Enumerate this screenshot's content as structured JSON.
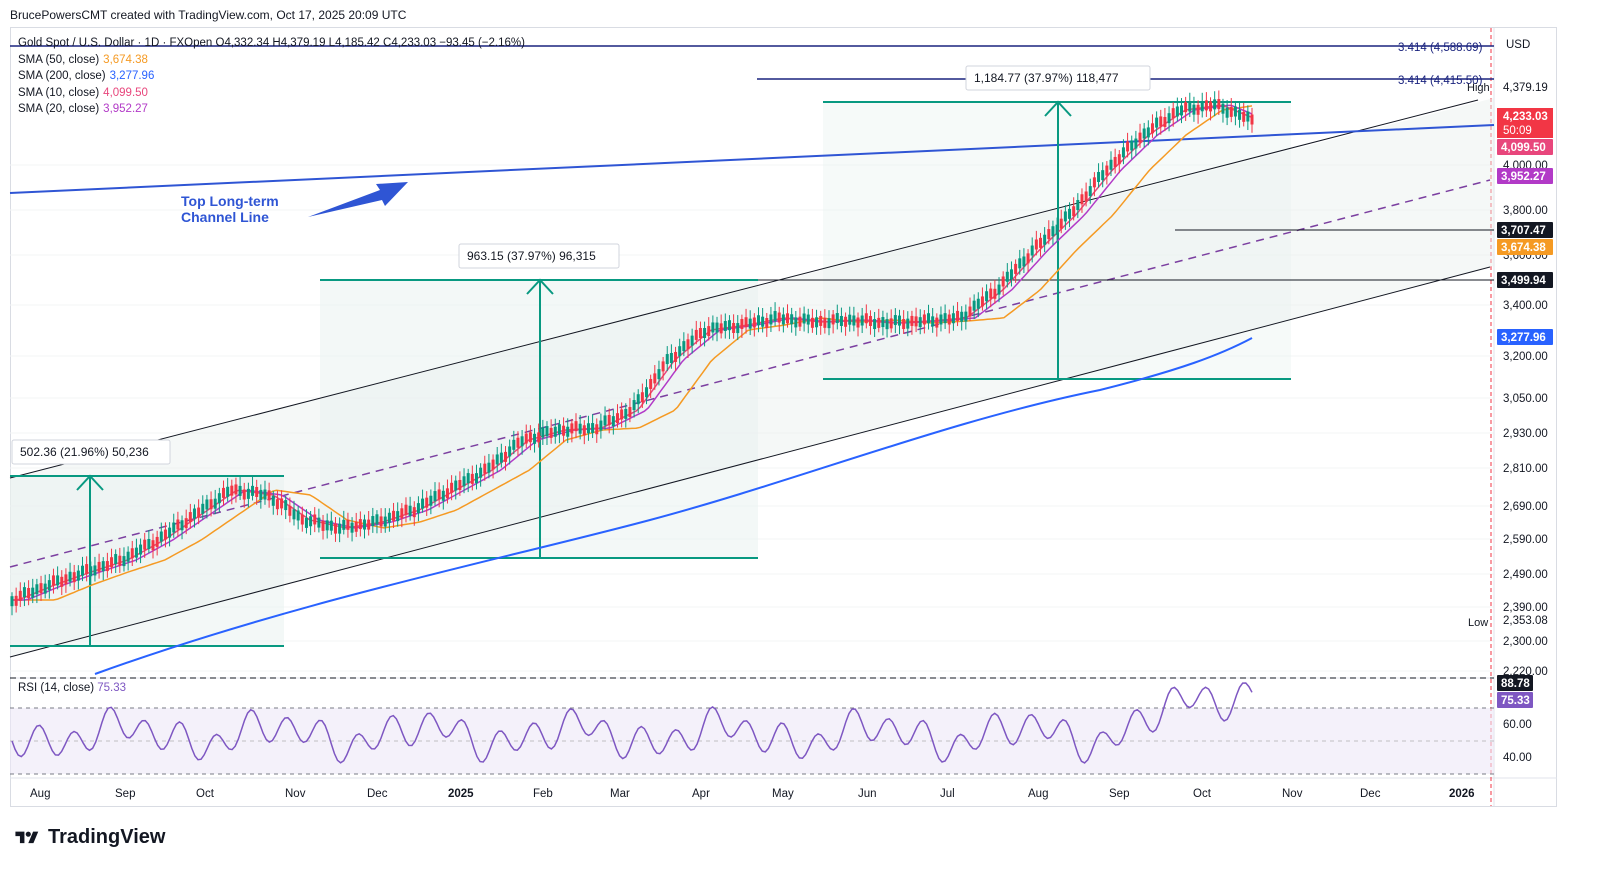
{
  "header": {
    "credit": "BrucePowersCMT created with TradingView.com, Oct 17, 2025 20:09 UTC"
  },
  "legend": {
    "symbol": "Gold Spot / U.S. Dollar · 1D · FXOpen",
    "ohlc": "O4,332.34  H4,379.19  L4,185.42  C4,233.03  −93.45 (−2.16%)",
    "smas": [
      {
        "label": "SMA (50, close)",
        "value": "3,674.38",
        "color": "#f59a23"
      },
      {
        "label": "SMA (200, close)",
        "value": "3,277.96",
        "color": "#2962ff"
      },
      {
        "label": "SMA (10, close)",
        "value": "4,099.50",
        "color": "#e8467c"
      },
      {
        "label": "SMA (20, close)",
        "value": "3,952.27",
        "color": "#b23ac7"
      }
    ]
  },
  "annotations": {
    "channel_label_1": "Top Long-term",
    "channel_label_2": "Channel Line",
    "measure_1": "502.36 (21.96%) 50,236",
    "measure_2": "963.15 (37.97%) 96,315",
    "measure_3": "1,184.77 (37.97%) 118,477",
    "fib_1": "3.414 (4,588.69)",
    "fib_2": "3.414 (4,415.50)"
  },
  "price_axis": {
    "currency": "USD",
    "ticks": [
      "4,000.00",
      "3,800.00",
      "3,600.00",
      "3,400.00",
      "3,200.00",
      "3,050.00",
      "2,930.00",
      "2,810.00",
      "2,690.00",
      "2,590.00",
      "2,490.00",
      "2,390.00",
      "2,300.00",
      "2,220.00"
    ],
    "high_label": "High",
    "high_value": "4,379.19",
    "low_label": "Low",
    "low_value": "2,353.08",
    "last_price": "4,233.03",
    "countdown": "50:09",
    "sma10_tag": "4,099.50",
    "sma20_tag": "3,952.27",
    "level_1": "3,707.47",
    "sma50_tag": "3,674.38",
    "level_2": "3,499.94",
    "sma200_tag": "3,277.96"
  },
  "rsi": {
    "label": "RSI (14, close)",
    "value": "75.33",
    "ticks": [
      "60.00",
      "40.00"
    ],
    "upper_tag": "88.78",
    "value_tag": "75.33"
  },
  "time_axis": [
    "Aug",
    "Sep",
    "Oct",
    "Nov",
    "Dec",
    "2025",
    "Feb",
    "Mar",
    "Apr",
    "May",
    "Jun",
    "Jul",
    "Aug",
    "Sep",
    "Oct",
    "Nov",
    "Dec",
    "2026"
  ],
  "footer": {
    "brand": "TradingView"
  },
  "colors": {
    "up": "#089981",
    "down": "#f23645",
    "channel": "#131722",
    "blue": "#2962ff",
    "teal": "#089981",
    "rsi": "#7e57c2"
  },
  "chart_data": {
    "type": "candlestick",
    "title": "Gold Spot / U.S. Dollar · 1D · FXOpen",
    "ylim": [
      2220,
      4620
    ],
    "x_labels": [
      "Aug",
      "Sep",
      "Oct",
      "Nov",
      "Dec",
      "2025",
      "Feb",
      "Mar",
      "Apr",
      "May",
      "Jun",
      "Jul",
      "Aug",
      "Sep",
      "Oct",
      "Nov",
      "Dec",
      "2026"
    ],
    "close_path": [
      [
        "Aug",
        2410
      ],
      [
        "Aug",
        2460
      ],
      [
        "Sep",
        2520
      ],
      [
        "Sep",
        2600
      ],
      [
        "Oct",
        2640
      ],
      [
        "Oct",
        2720
      ],
      [
        "Nov",
        2780
      ],
      [
        "Nov",
        2620
      ],
      [
        "Dec",
        2660
      ],
      [
        "Dec",
        2620
      ],
      [
        "2025",
        2630
      ],
      [
        "2025",
        2700
      ],
      [
        "Feb",
        2800
      ],
      [
        "Feb",
        2880
      ],
      [
        "Mar",
        2900
      ],
      [
        "Mar",
        2940
      ],
      [
        "Apr",
        3080
      ],
      [
        "Apr",
        3150
      ],
      [
        "Apr",
        3400
      ],
      [
        "May",
        3320
      ],
      [
        "May",
        3250
      ],
      [
        "Jun",
        3370
      ],
      [
        "Jun",
        3390
      ],
      [
        "Jul",
        3330
      ],
      [
        "Jul",
        3350
      ],
      [
        "Aug",
        3380
      ],
      [
        "Aug",
        3350
      ],
      [
        "Sep",
        3520
      ],
      [
        "Sep",
        3650
      ],
      [
        "Oct",
        3880
      ],
      [
        "Oct",
        4100
      ],
      [
        "Oct",
        4330
      ],
      [
        "Oct",
        4233.03
      ]
    ],
    "ohlc_last": {
      "open": 4332.34,
      "high": 4379.19,
      "low": 4185.42,
      "close": 4233.03
    },
    "sma": {
      "sma50": 3674.38,
      "sma200": 3277.96,
      "sma10": 4099.5,
      "sma20": 3952.27
    },
    "rsi_last": 75.33,
    "rsi_ylim": [
      20,
      100
    ]
  }
}
